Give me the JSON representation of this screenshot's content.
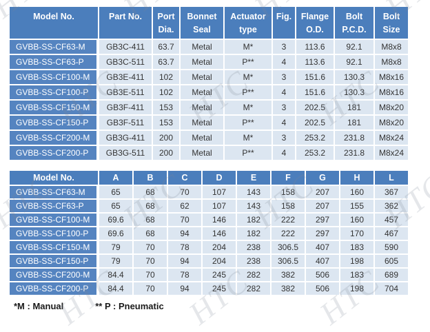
{
  "colors": {
    "header_bg": "#4b7ebc",
    "model_bg": "#5584c0",
    "cell_bg": "#dce6f1",
    "cell_text": "#333333",
    "header_text": "#ffffff"
  },
  "watermark": {
    "text": "HTC"
  },
  "spec_table": {
    "headers": [
      {
        "line1": "Model No.",
        "line2": ""
      },
      {
        "line1": "Part No.",
        "line2": ""
      },
      {
        "line1": "Port",
        "line2": "Dia."
      },
      {
        "line1": "Bonnet",
        "line2": "Seal"
      },
      {
        "line1": "Actuator",
        "line2": "type"
      },
      {
        "line1": "Fig.",
        "line2": ""
      },
      {
        "line1": "Flange",
        "line2": "O.D."
      },
      {
        "line1": "Bolt",
        "line2": "P.C.D."
      },
      {
        "line1": "Bolt",
        "line2": "Size"
      }
    ],
    "rows": [
      {
        "model": "GVBB-SS-CF63-M",
        "cells": [
          "GB3C-411",
          "63.7",
          "Metal",
          "M*",
          "3",
          "113.6",
          "92.1",
          "M8x8"
        ]
      },
      {
        "model": "GVBB-SS-CF63-P",
        "cells": [
          "GB3C-511",
          "63.7",
          "Metal",
          "P**",
          "4",
          "113.6",
          "92.1",
          "M8x8"
        ]
      },
      {
        "model": "GVBB-SS-CF100-M",
        "cells": [
          "GB3E-411",
          "102",
          "Metal",
          "M*",
          "3",
          "151.6",
          "130.3",
          "M8x16"
        ]
      },
      {
        "model": "GVBB-SS-CF100-P",
        "cells": [
          "GB3E-511",
          "102",
          "Metal",
          "P**",
          "4",
          "151.6",
          "130.3",
          "M8x16"
        ]
      },
      {
        "model": "GVBB-SS-CF150-M",
        "cells": [
          "GB3F-411",
          "153",
          "Metal",
          "M*",
          "3",
          "202.5",
          "181",
          "M8x20"
        ]
      },
      {
        "model": "GVBB-SS-CF150-P",
        "cells": [
          "GB3F-511",
          "153",
          "Metal",
          "P**",
          "4",
          "202.5",
          "181",
          "M8x20"
        ]
      },
      {
        "model": "GVBB-SS-CF200-M",
        "cells": [
          "GB3G-411",
          "200",
          "Metal",
          "M*",
          "3",
          "253.2",
          "231.8",
          "M8x24"
        ]
      },
      {
        "model": "GVBB-SS-CF200-P",
        "cells": [
          "GB3G-511",
          "200",
          "Metal",
          "P**",
          "4",
          "253.2",
          "231.8",
          "M8x24"
        ]
      }
    ]
  },
  "dimension_table": {
    "headers": [
      "Model No.",
      "A",
      "B",
      "C",
      "D",
      "E",
      "F",
      "G",
      "H",
      "L"
    ],
    "rows": [
      {
        "model": "GVBB-SS-CF63-M",
        "cells": [
          "65",
          "68",
          "70",
          "107",
          "143",
          "158",
          "207",
          "160",
          "367"
        ]
      },
      {
        "model": "GVBB-SS-CF63-P",
        "cells": [
          "65",
          "68",
          "62",
          "107",
          "143",
          "158",
          "207",
          "155",
          "362"
        ]
      },
      {
        "model": "GVBB-SS-CF100-M",
        "cells": [
          "69.6",
          "68",
          "70",
          "146",
          "182",
          "222",
          "297",
          "160",
          "457"
        ]
      },
      {
        "model": "GVBB-SS-CF100-P",
        "cells": [
          "69.6",
          "68",
          "94",
          "146",
          "182",
          "222",
          "297",
          "170",
          "467"
        ]
      },
      {
        "model": "GVBB-SS-CF150-M",
        "cells": [
          "79",
          "70",
          "78",
          "204",
          "238",
          "306.5",
          "407",
          "183",
          "590"
        ]
      },
      {
        "model": "GVBB-SS-CF150-P",
        "cells": [
          "79",
          "70",
          "94",
          "204",
          "238",
          "306.5",
          "407",
          "198",
          "605"
        ]
      },
      {
        "model": "GVBB-SS-CF200-M",
        "cells": [
          "84.4",
          "70",
          "78",
          "245",
          "282",
          "382",
          "506",
          "183",
          "689"
        ]
      },
      {
        "model": "GVBB-SS-CF200-P",
        "cells": [
          "84.4",
          "70",
          "94",
          "245",
          "282",
          "382",
          "506",
          "198",
          "704"
        ]
      }
    ]
  },
  "footnotes": {
    "manual": "*M : Manual",
    "pneumatic": "** P : Pneumatic"
  }
}
